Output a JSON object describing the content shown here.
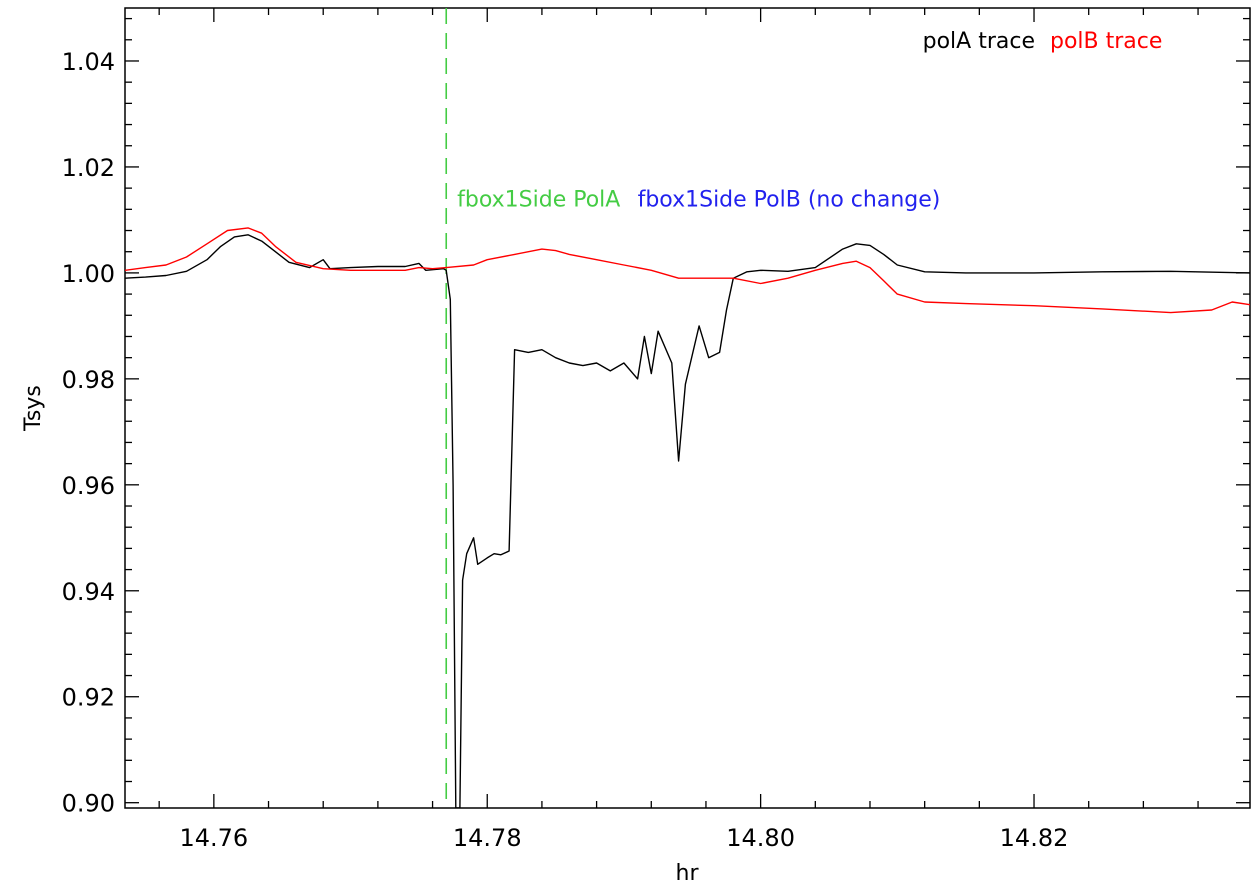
{
  "chart_data": {
    "type": "line",
    "title": "",
    "xlabel": "hr",
    "ylabel": "Tsys",
    "xlim": [
      14.7535,
      14.8358
    ],
    "ylim": [
      0.899,
      1.05
    ],
    "x_ticks": [
      14.76,
      14.78,
      14.8,
      14.82
    ],
    "x_tick_labels": [
      "14.76",
      "14.78",
      "14.80",
      "14.82"
    ],
    "y_ticks": [
      0.9,
      0.92,
      0.94,
      0.96,
      0.98,
      1.0,
      1.02,
      1.04
    ],
    "y_tick_labels": [
      "0.90",
      "0.92",
      "0.94",
      "0.96",
      "0.98",
      "1.00",
      "1.02",
      "1.04"
    ],
    "grid": false,
    "legend": {
      "placement": "top-right"
    },
    "series": [
      {
        "name": "polA trace",
        "color": "#000000",
        "points": [
          [
            14.7535,
            0.999
          ],
          [
            14.755,
            0.9992
          ],
          [
            14.7565,
            0.9995
          ],
          [
            14.758,
            1.0003
          ],
          [
            14.7595,
            1.0025
          ],
          [
            14.7605,
            1.005
          ],
          [
            14.7615,
            1.0068
          ],
          [
            14.7625,
            1.0072
          ],
          [
            14.7635,
            1.006
          ],
          [
            14.7645,
            1.004
          ],
          [
            14.7655,
            1.002
          ],
          [
            14.767,
            1.001
          ],
          [
            14.768,
            1.0025
          ],
          [
            14.7685,
            1.0008
          ],
          [
            14.77,
            1.001
          ],
          [
            14.772,
            1.0012
          ],
          [
            14.774,
            1.0012
          ],
          [
            14.775,
            1.0018
          ],
          [
            14.7755,
            1.0005
          ],
          [
            14.7768,
            1.0008
          ],
          [
            14.777,
            1.0005
          ],
          [
            14.7773,
            0.995
          ],
          [
            14.7775,
            0.96
          ],
          [
            14.7777,
            0.899
          ],
          [
            14.778,
            0.899
          ],
          [
            14.7782,
            0.942
          ],
          [
            14.7785,
            0.947
          ],
          [
            14.779,
            0.95
          ],
          [
            14.7793,
            0.945
          ],
          [
            14.78,
            0.9462
          ],
          [
            14.7805,
            0.947
          ],
          [
            14.781,
            0.9468
          ],
          [
            14.7816,
            0.9475
          ],
          [
            14.782,
            0.9855
          ],
          [
            14.783,
            0.985
          ],
          [
            14.784,
            0.9855
          ],
          [
            14.785,
            0.984
          ],
          [
            14.786,
            0.983
          ],
          [
            14.787,
            0.9825
          ],
          [
            14.788,
            0.983
          ],
          [
            14.789,
            0.9815
          ],
          [
            14.79,
            0.983
          ],
          [
            14.791,
            0.98
          ],
          [
            14.7915,
            0.988
          ],
          [
            14.792,
            0.981
          ],
          [
            14.7925,
            0.989
          ],
          [
            14.7935,
            0.983
          ],
          [
            14.794,
            0.9645
          ],
          [
            14.7945,
            0.979
          ],
          [
            14.7955,
            0.99
          ],
          [
            14.7962,
            0.984
          ],
          [
            14.797,
            0.985
          ],
          [
            14.7975,
            0.993
          ],
          [
            14.798,
            0.999
          ],
          [
            14.799,
            1.0002
          ],
          [
            14.8,
            1.0005
          ],
          [
            14.802,
            1.0003
          ],
          [
            14.804,
            1.001
          ],
          [
            14.806,
            1.0045
          ],
          [
            14.807,
            1.0055
          ],
          [
            14.808,
            1.0052
          ],
          [
            14.809,
            1.0035
          ],
          [
            14.81,
            1.0015
          ],
          [
            14.812,
            1.0002
          ],
          [
            14.815,
            1.0
          ],
          [
            14.82,
            1.0
          ],
          [
            14.825,
            1.0002
          ],
          [
            14.83,
            1.0003
          ],
          [
            14.8358,
            1.0
          ]
        ]
      },
      {
        "name": "polB trace",
        "color": "#ff0000",
        "points": [
          [
            14.7535,
            1.0005
          ],
          [
            14.755,
            1.001
          ],
          [
            14.7565,
            1.0015
          ],
          [
            14.758,
            1.003
          ],
          [
            14.7595,
            1.0055
          ],
          [
            14.761,
            1.008
          ],
          [
            14.7625,
            1.0085
          ],
          [
            14.7635,
            1.0075
          ],
          [
            14.7645,
            1.005
          ],
          [
            14.766,
            1.002
          ],
          [
            14.768,
            1.0008
          ],
          [
            14.77,
            1.0005
          ],
          [
            14.772,
            1.0005
          ],
          [
            14.774,
            1.0005
          ],
          [
            14.775,
            1.001
          ],
          [
            14.776,
            1.0008
          ],
          [
            14.777,
            1.001
          ],
          [
            14.779,
            1.0015
          ],
          [
            14.78,
            1.0025
          ],
          [
            14.782,
            1.0035
          ],
          [
            14.784,
            1.0045
          ],
          [
            14.785,
            1.0042
          ],
          [
            14.786,
            1.0035
          ],
          [
            14.788,
            1.0025
          ],
          [
            14.79,
            1.0015
          ],
          [
            14.792,
            1.0005
          ],
          [
            14.794,
            0.999
          ],
          [
            14.796,
            0.999
          ],
          [
            14.798,
            0.999
          ],
          [
            14.8,
            0.998
          ],
          [
            14.802,
            0.999
          ],
          [
            14.804,
            1.0005
          ],
          [
            14.806,
            1.0018
          ],
          [
            14.807,
            1.0022
          ],
          [
            14.808,
            1.001
          ],
          [
            14.809,
            0.9985
          ],
          [
            14.81,
            0.996
          ],
          [
            14.812,
            0.9945
          ],
          [
            14.815,
            0.9942
          ],
          [
            14.82,
            0.9938
          ],
          [
            14.825,
            0.9932
          ],
          [
            14.83,
            0.9925
          ],
          [
            14.833,
            0.993
          ],
          [
            14.8345,
            0.9945
          ],
          [
            14.8358,
            0.994
          ]
        ]
      }
    ],
    "markers": [
      {
        "x": 14.777,
        "color": "#44cc44",
        "style": "dashed"
      }
    ],
    "annotations": [
      {
        "text": "fbox1Side PolA",
        "x": 14.7778,
        "y": 1.0125,
        "color": "#44cc44"
      },
      {
        "text": "fbox1Side PolB (no change)",
        "x": 14.791,
        "y": 1.0125,
        "color": "#2222ee"
      }
    ]
  }
}
